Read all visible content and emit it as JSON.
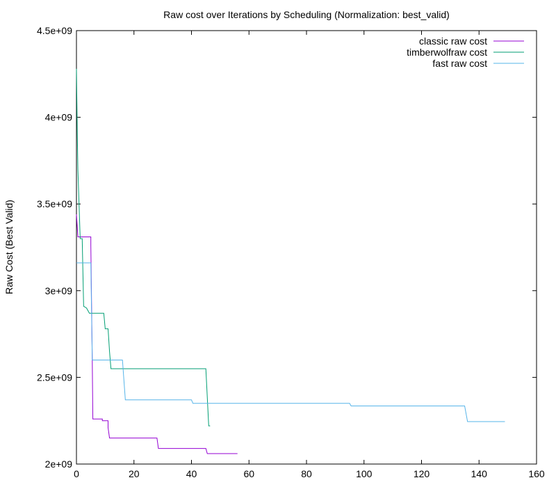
{
  "chart_data": {
    "type": "line",
    "title": "Raw cost over Iterations by Scheduling (Normalization: best_valid)",
    "xlabel": "",
    "ylabel": "Raw Cost (Best Valid)",
    "xlim": [
      0,
      160
    ],
    "ylim": [
      2000000000,
      4500000000
    ],
    "x_ticks": [
      0,
      20,
      40,
      60,
      80,
      100,
      120,
      140,
      160
    ],
    "y_ticks": [
      2000000000,
      2500000000,
      3000000000,
      3500000000,
      4000000000,
      4500000000
    ],
    "x_tick_labels": [
      "0",
      "20",
      "40",
      "60",
      "80",
      "100",
      "120",
      "140",
      "160"
    ],
    "y_tick_labels": [
      "2e+09",
      "2.5e+09",
      "3e+09",
      "3.5e+09",
      "4e+09",
      "4.5e+09"
    ],
    "grid": false,
    "legend_position": "top-right",
    "series": [
      {
        "name": "classic raw cost",
        "color": "#9400d3",
        "points": [
          [
            0,
            3440000000
          ],
          [
            0.5,
            3310000000
          ],
          [
            5,
            3310000000
          ],
          [
            5,
            3260000000
          ],
          [
            5.5,
            2600000000
          ],
          [
            5.7,
            2260000000
          ],
          [
            9,
            2260000000
          ],
          [
            9,
            2250000000
          ],
          [
            11,
            2250000000
          ],
          [
            11,
            2210000000
          ],
          [
            11.5,
            2150000000
          ],
          [
            28,
            2150000000
          ],
          [
            28.5,
            2090000000
          ],
          [
            45,
            2090000000
          ],
          [
            45.5,
            2060000000
          ],
          [
            56,
            2060000000
          ]
        ]
      },
      {
        "name": "timberwolfraw cost",
        "color": "#009e73",
        "points": [
          [
            0,
            4280000000
          ],
          [
            0.3,
            3900000000
          ],
          [
            0.5,
            3700000000
          ],
          [
            1,
            3450000000
          ],
          [
            1.3,
            3300000000
          ],
          [
            2,
            3300000000
          ],
          [
            2.5,
            2910000000
          ],
          [
            3.5,
            2900000000
          ],
          [
            4.5,
            2870000000
          ],
          [
            9.5,
            2870000000
          ],
          [
            10,
            2780000000
          ],
          [
            11,
            2780000000
          ],
          [
            11.5,
            2650000000
          ],
          [
            12,
            2550000000
          ],
          [
            45,
            2550000000
          ],
          [
            46,
            2220000000
          ],
          [
            46.5,
            2220000000
          ]
        ]
      },
      {
        "name": "fast raw cost",
        "color": "#56b4e9",
        "points": [
          [
            0,
            3160000000
          ],
          [
            5,
            3160000000
          ],
          [
            5.5,
            2600000000
          ],
          [
            16,
            2600000000
          ],
          [
            17,
            2370000000
          ],
          [
            40,
            2370000000
          ],
          [
            40.5,
            2350000000
          ],
          [
            95,
            2350000000
          ],
          [
            95.5,
            2335000000
          ],
          [
            135,
            2335000000
          ],
          [
            136,
            2245000000
          ],
          [
            149,
            2245000000
          ]
        ]
      }
    ]
  }
}
